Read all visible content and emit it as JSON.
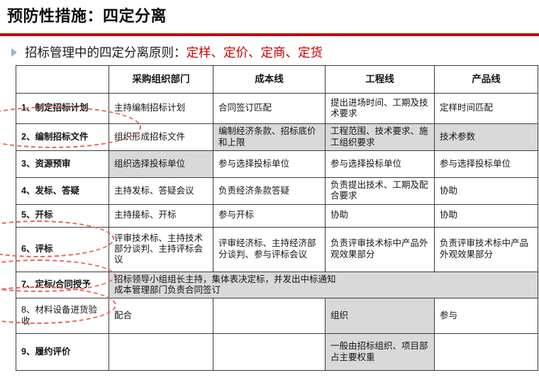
{
  "page": {
    "title": "预防性措施：四定分离"
  },
  "subtitle": {
    "prefix": "招标管理中的四定分离原则：",
    "highlight": "定样、定价、定商、定货"
  },
  "colors": {
    "accent_red": "#C00000",
    "highlight_red": "#D00000",
    "shaded_cell": "#D9D9D9",
    "annotation_dash_red": "#E8635A"
  },
  "table": {
    "headers": [
      "",
      "采购组织部门",
      "成本线",
      "工程线",
      "产品线"
    ],
    "rows": [
      {
        "label": "1、制定招标计划",
        "cells": [
          {
            "text": "主持编制招标计划"
          },
          {
            "text": "合同签订匹配"
          },
          {
            "text": "提出进场时间、工期及技术要求"
          },
          {
            "text": "定样时间匹配"
          }
        ]
      },
      {
        "label": "2、编制招标文件",
        "circled": true,
        "cells": [
          {
            "text": "组织形成招标文件"
          },
          {
            "text": "编制经济条款、招标底价和上限",
            "shaded": true
          },
          {
            "text": "工程范围、技术要求、施工组织要求",
            "shaded": true
          },
          {
            "text": "技术参数",
            "shaded": true
          }
        ]
      },
      {
        "label": "3、资源预审",
        "cells": [
          {
            "text": "组织选择投标单位",
            "shaded": true
          },
          {
            "text": "参与选择投标单位"
          },
          {
            "text": "参与选择投标单位"
          },
          {
            "text": "参与选择投标单位"
          }
        ]
      },
      {
        "label": "4、发标、答疑",
        "cells": [
          {
            "text": "主持发标、答疑会议"
          },
          {
            "text": "负责经济条款答疑"
          },
          {
            "text": "负责提出技术、工期及配合要求"
          },
          {
            "text": "协助"
          }
        ]
      },
      {
        "label": "5、开标",
        "cells": [
          {
            "text": "主持接标、开标"
          },
          {
            "text": "参与开标"
          },
          {
            "text": "协助"
          },
          {
            "text": "协助"
          }
        ]
      },
      {
        "label": "6、评标",
        "circled": true,
        "cells": [
          {
            "text": "评审技术标、主持技术部分谈判、主持评标会议"
          },
          {
            "text": "评审经济标、主持经济部分谈判、参与评标会议"
          },
          {
            "text": "负责评审技术标中产品外观效果部分"
          },
          {
            "text": "负责评审技术标中产品外观效果部分"
          }
        ]
      },
      {
        "label": "7、定标/合同授予",
        "circled": true,
        "cells": [
          {
            "text": "招标领导小组组长主持，集体表决定标，并发出中标通知\n成本管理部门负责合同签订",
            "shaded": true,
            "colspan": 4
          }
        ]
      },
      {
        "label": "8、材料设备进货验收",
        "bold_label": false,
        "circled": true,
        "cells": [
          {
            "text": "配合"
          },
          {
            "text": ""
          },
          {
            "text": "组织",
            "shaded": true
          },
          {
            "text": "参与"
          }
        ]
      },
      {
        "label": "9、履约评价",
        "cells": [
          {
            "text": ""
          },
          {
            "text": ""
          },
          {
            "text": "一般由招标组织、项目部占主要权重",
            "shaded": true
          },
          {
            "text": ""
          }
        ]
      }
    ]
  }
}
